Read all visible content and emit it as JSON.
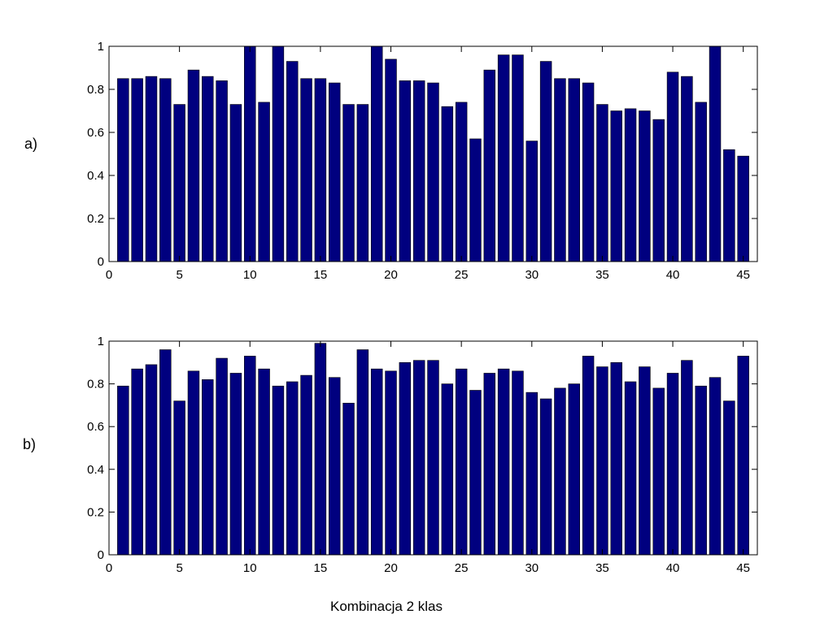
{
  "figure": {
    "xlabel": "Kombinacja 2 klas",
    "bar_color": "#00007f"
  },
  "chart_data": [
    {
      "type": "bar",
      "panel_label": "a)",
      "x": [
        1,
        2,
        3,
        4,
        5,
        6,
        7,
        8,
        9,
        10,
        11,
        12,
        13,
        14,
        15,
        16,
        17,
        18,
        19,
        20,
        21,
        22,
        23,
        24,
        25,
        26,
        27,
        28,
        29,
        30,
        31,
        32,
        33,
        34,
        35,
        36,
        37,
        38,
        39,
        40,
        41,
        42,
        43,
        44,
        45
      ],
      "values": [
        0.85,
        0.85,
        0.86,
        0.85,
        0.73,
        0.89,
        0.86,
        0.84,
        0.73,
        1.0,
        0.74,
        1.0,
        0.93,
        0.85,
        0.85,
        0.83,
        0.73,
        0.73,
        1.0,
        0.94,
        0.84,
        0.84,
        0.83,
        0.72,
        0.74,
        0.57,
        0.89,
        0.96,
        0.96,
        0.56,
        0.93,
        0.85,
        0.85,
        0.83,
        0.73,
        0.7,
        0.71,
        0.7,
        0.66,
        0.88,
        0.86,
        0.74,
        1.0,
        0.52,
        0.49
      ],
      "xlim": [
        0,
        46
      ],
      "ylim": [
        0,
        1
      ],
      "xticks": [
        0,
        5,
        10,
        15,
        20,
        25,
        30,
        35,
        40,
        45
      ],
      "yticks": [
        0,
        0.2,
        0.4,
        0.6,
        0.8,
        1
      ],
      "ytick_labels": [
        "0",
        "0.2",
        "0.4",
        "0.6",
        "0.8",
        "1"
      ]
    },
    {
      "type": "bar",
      "panel_label": "b)",
      "x": [
        1,
        2,
        3,
        4,
        5,
        6,
        7,
        8,
        9,
        10,
        11,
        12,
        13,
        14,
        15,
        16,
        17,
        18,
        19,
        20,
        21,
        22,
        23,
        24,
        25,
        26,
        27,
        28,
        29,
        30,
        31,
        32,
        33,
        34,
        35,
        36,
        37,
        38,
        39,
        40,
        41,
        42,
        43,
        44,
        45
      ],
      "values": [
        0.79,
        0.87,
        0.89,
        0.96,
        0.72,
        0.86,
        0.82,
        0.92,
        0.85,
        0.93,
        0.87,
        0.79,
        0.81,
        0.84,
        0.99,
        0.83,
        0.71,
        0.96,
        0.87,
        0.86,
        0.9,
        0.91,
        0.91,
        0.8,
        0.87,
        0.77,
        0.85,
        0.87,
        0.86,
        0.76,
        0.73,
        0.78,
        0.8,
        0.93,
        0.88,
        0.9,
        0.81,
        0.88,
        0.78,
        0.85,
        0.91,
        0.79,
        0.83,
        0.72,
        0.93
      ],
      "xlim": [
        0,
        46
      ],
      "ylim": [
        0,
        1
      ],
      "xticks": [
        0,
        5,
        10,
        15,
        20,
        25,
        30,
        35,
        40,
        45
      ],
      "yticks": [
        0,
        0.2,
        0.4,
        0.6,
        0.8,
        1
      ],
      "ytick_labels": [
        "0",
        "0.2",
        "0.4",
        "0.6",
        "0.8",
        "1"
      ]
    }
  ]
}
